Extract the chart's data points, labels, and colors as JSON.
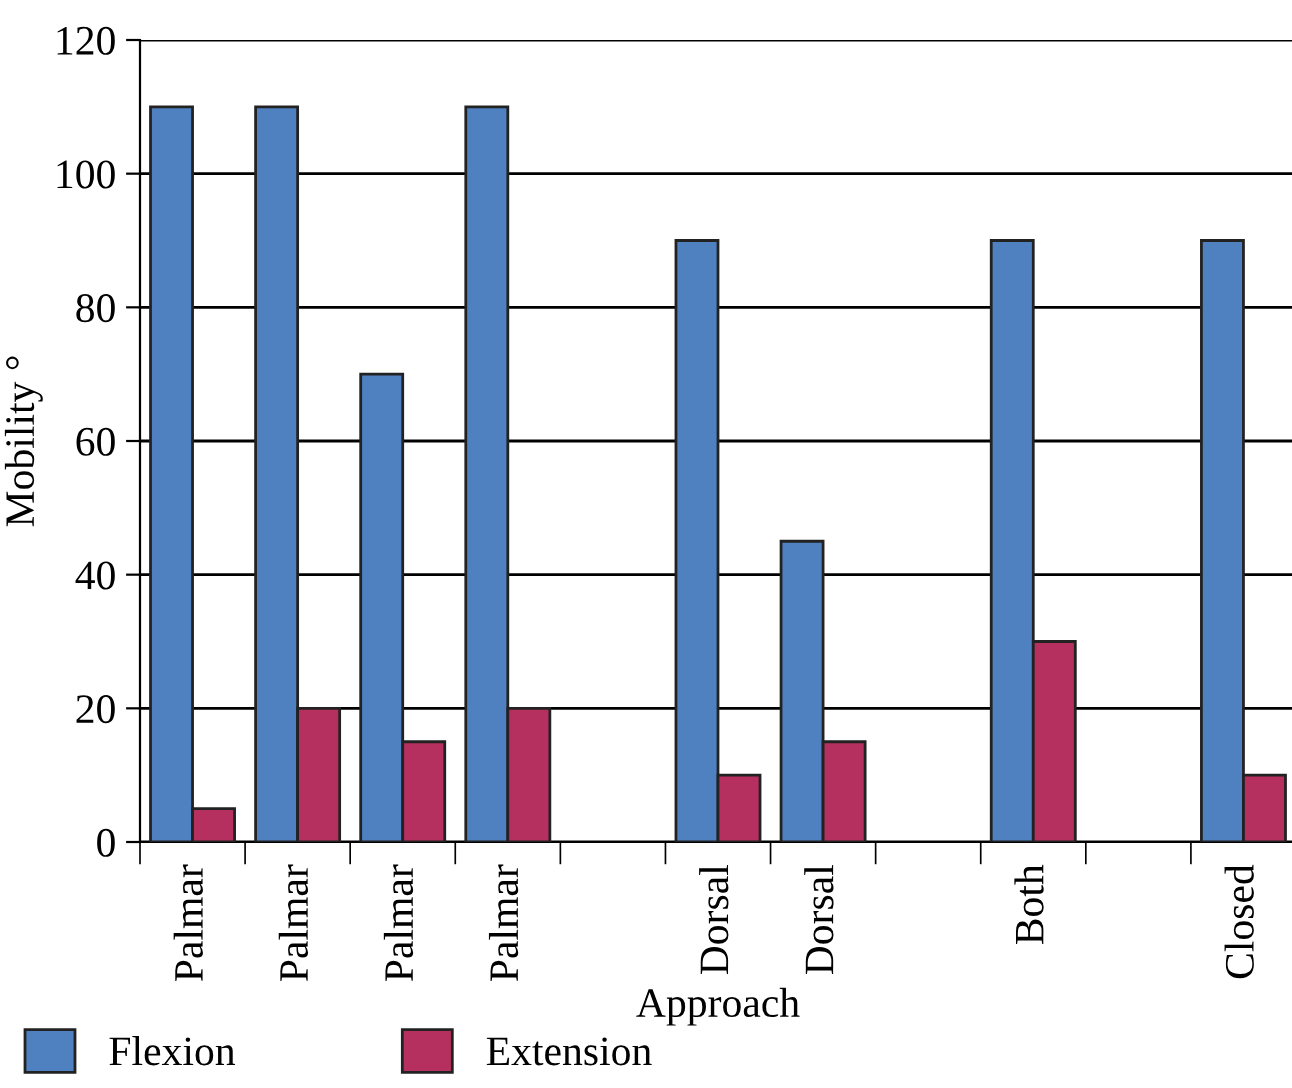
{
  "chart_data": {
    "type": "bar",
    "xlabel": "Approach",
    "ylabel": "Mobility °",
    "categories": [
      "Palmar",
      "Palmar",
      "Palmar",
      "Palmar",
      null,
      "Dorsal",
      "Dorsal",
      null,
      "Both",
      null,
      "Closed"
    ],
    "series": [
      {
        "name": "Flexion",
        "color": "#4f81c0",
        "values": [
          110,
          110,
          70,
          110,
          null,
          90,
          45,
          null,
          90,
          null,
          90
        ]
      },
      {
        "name": "Extension",
        "color": "#b5305f",
        "values": [
          5,
          20,
          15,
          20,
          null,
          10,
          15,
          null,
          30,
          null,
          10
        ]
      }
    ],
    "ylim": [
      0,
      120
    ],
    "yticks": [
      0,
      20,
      40,
      60,
      80,
      100,
      120
    ],
    "grid": "y",
    "legend": "bottom left"
  }
}
